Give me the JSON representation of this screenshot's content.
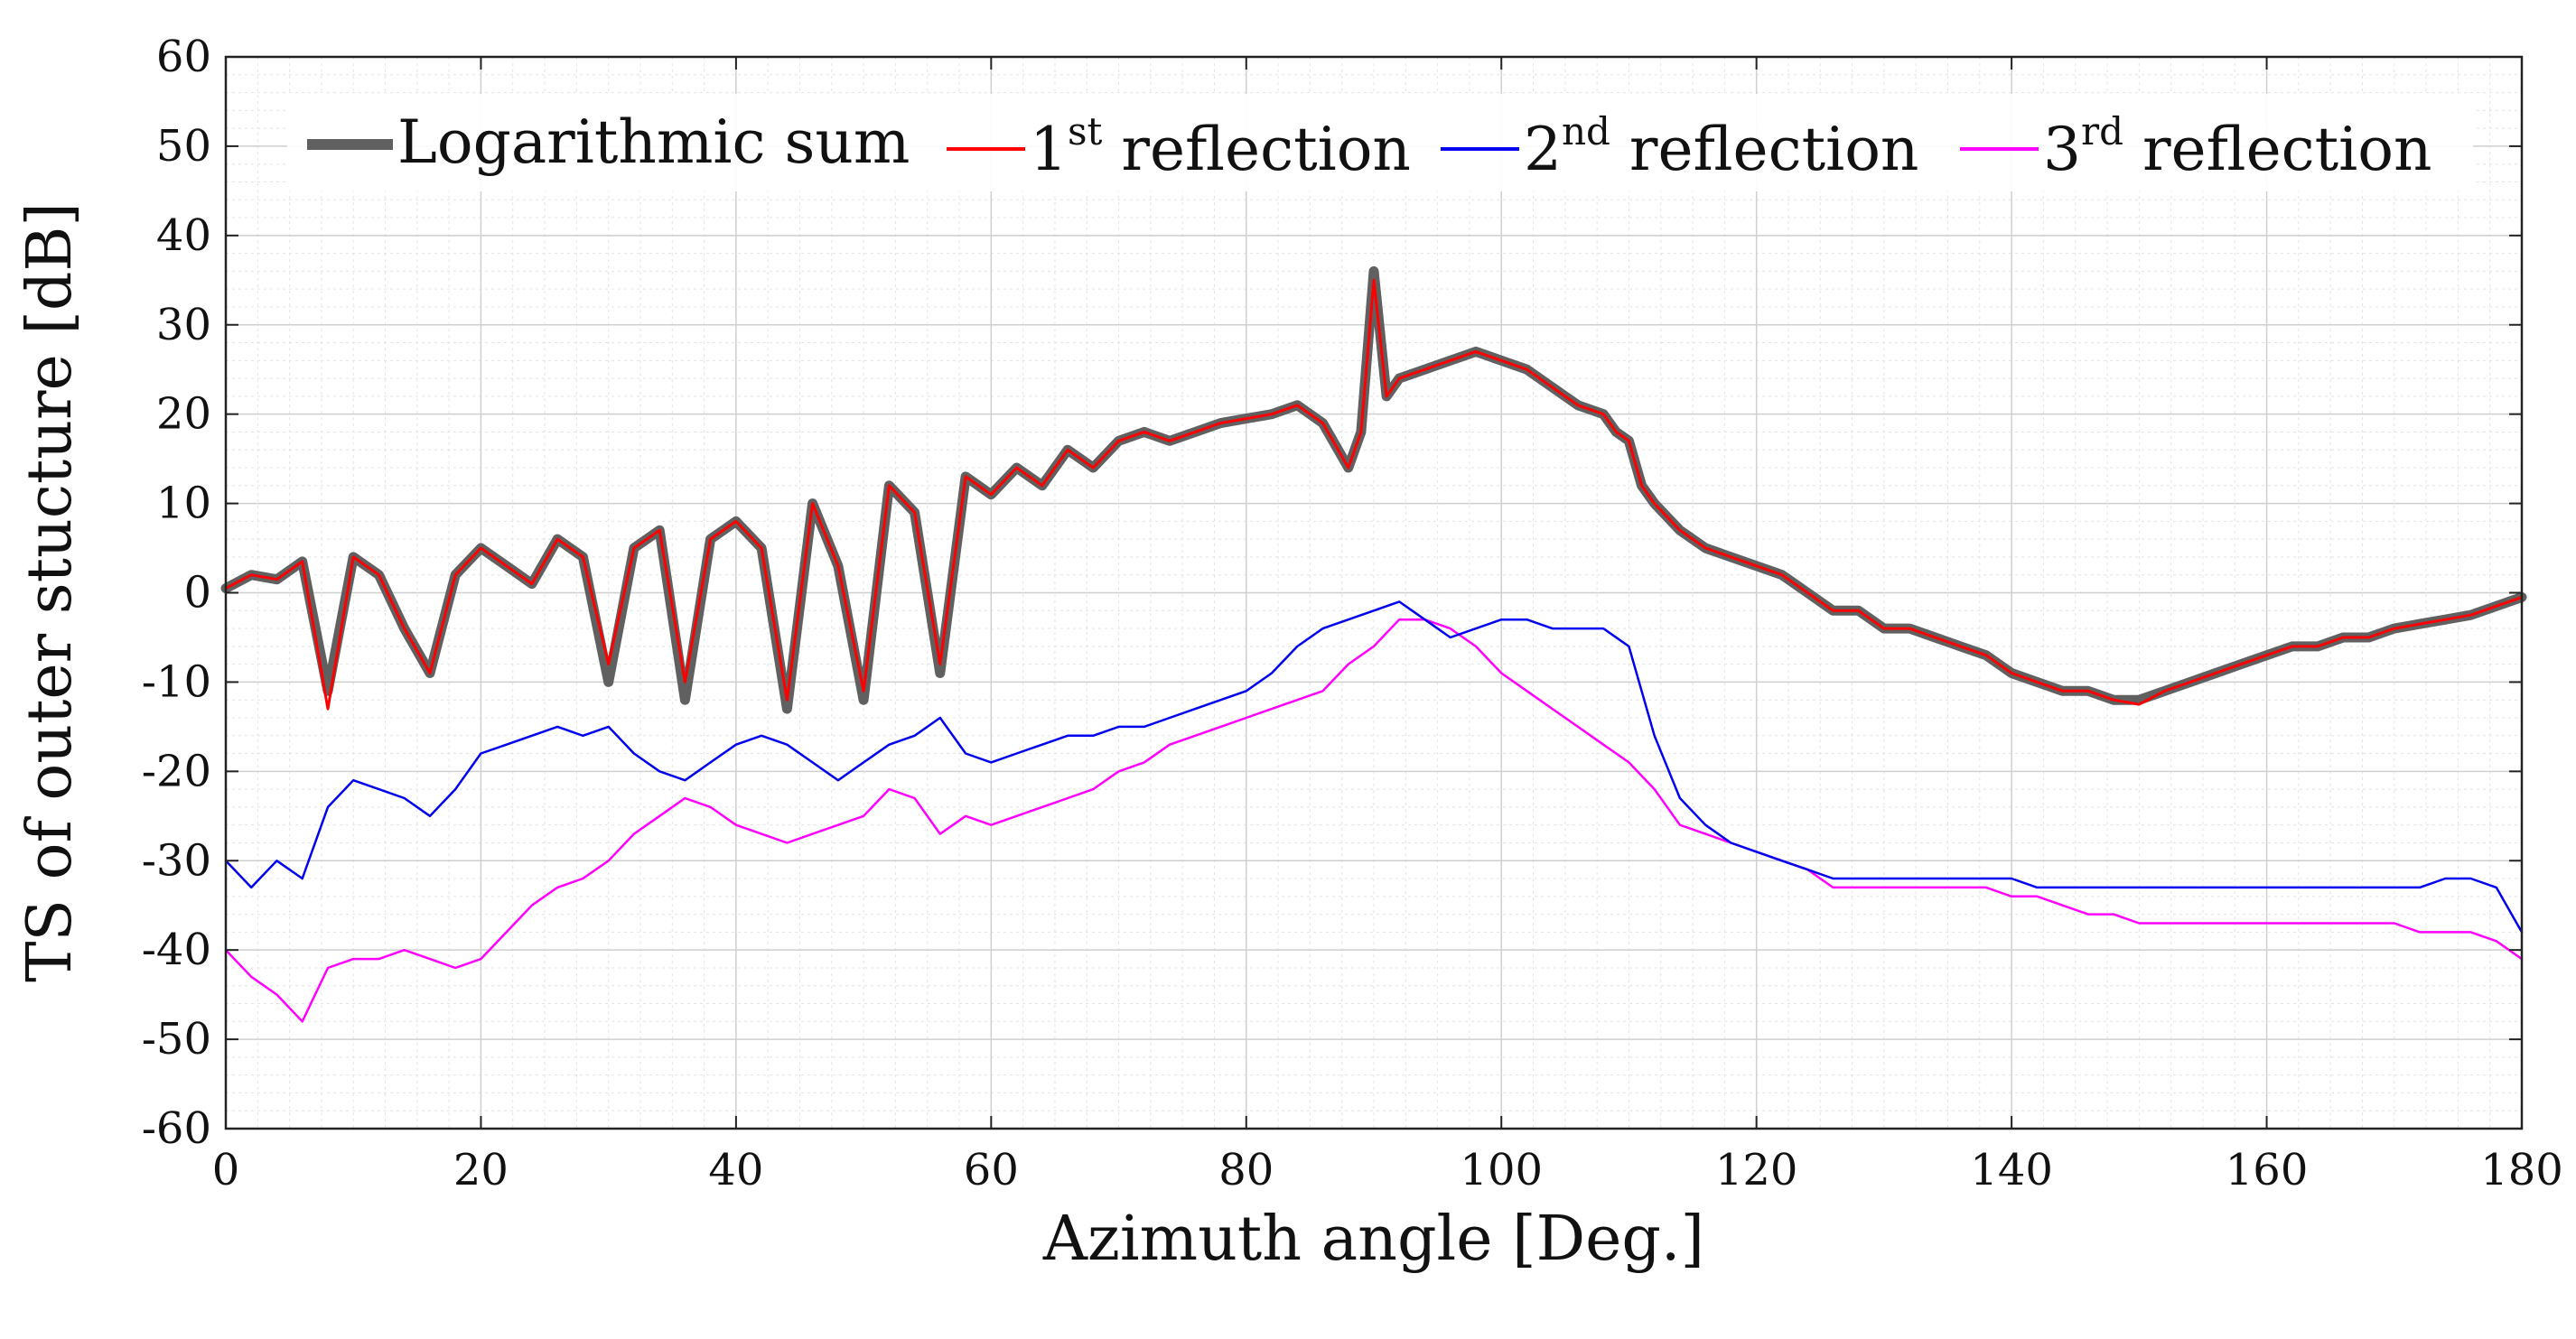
{
  "chart_data": {
    "type": "line",
    "title": "",
    "xlabel": "Azimuth angle [Deg.]",
    "ylabel": "TS of outer stucture [dB]",
    "xlim": [
      0,
      180
    ],
    "ylim": [
      -60,
      60
    ],
    "xticks": [
      0,
      20,
      40,
      60,
      80,
      100,
      120,
      140,
      160,
      180
    ],
    "yticks": [
      -60,
      -50,
      -40,
      -30,
      -20,
      -10,
      0,
      10,
      20,
      30,
      40,
      50,
      60
    ],
    "xtick_labels": [
      "0",
      "20",
      "40",
      "60",
      "80",
      "100",
      "120",
      "140",
      "160",
      "180"
    ],
    "ytick_labels": [
      "-60",
      "-50",
      "-40",
      "-30",
      "-20",
      "-10",
      "0",
      "10",
      "20",
      "30",
      "40",
      "50",
      "60"
    ],
    "grid": true,
    "legend_position": "top",
    "series": [
      {
        "name": "Logarithmic sum",
        "legend_parts": [
          "Logarithmic sum",
          "",
          ""
        ],
        "color": "#606060",
        "x": [
          0,
          2,
          4,
          6,
          8,
          10,
          12,
          14,
          16,
          18,
          20,
          22,
          24,
          26,
          28,
          30,
          32,
          34,
          36,
          38,
          40,
          42,
          44,
          46,
          48,
          50,
          52,
          54,
          56,
          58,
          60,
          62,
          64,
          66,
          68,
          70,
          72,
          74,
          76,
          78,
          80,
          82,
          84,
          86,
          88,
          89,
          90,
          91,
          92,
          94,
          96,
          98,
          100,
          102,
          104,
          106,
          108,
          109,
          110,
          111,
          112,
          114,
          116,
          118,
          120,
          122,
          124,
          126,
          128,
          130,
          132,
          134,
          136,
          138,
          140,
          142,
          144,
          146,
          148,
          150,
          152,
          154,
          156,
          158,
          160,
          162,
          164,
          166,
          168,
          170,
          172,
          174,
          176,
          178,
          180
        ],
        "y": [
          0.5,
          2,
          1.5,
          3.5,
          -11,
          4,
          2,
          -4,
          -9,
          2,
          5,
          3,
          1,
          6,
          4,
          -10,
          5,
          7,
          -12,
          6,
          8,
          5,
          -13,
          10,
          3,
          -12,
          12,
          9,
          -9,
          13,
          11,
          14,
          12,
          16,
          14,
          17,
          18,
          17,
          18,
          19,
          19.5,
          20,
          21,
          19,
          14,
          18,
          36,
          22,
          24,
          25,
          26,
          27,
          26,
          25,
          23,
          21,
          20,
          18,
          17,
          12,
          10,
          7,
          5,
          4,
          3,
          2,
          0,
          -2,
          -2,
          -4,
          -4,
          -5,
          -6,
          -7,
          -9,
          -10,
          -11,
          -11,
          -12,
          -12,
          -11,
          -10,
          -9,
          -8,
          -7,
          -6,
          -6,
          -5,
          -5,
          -4,
          -3.5,
          -3,
          -2.5,
          -1.5,
          -0.5
        ]
      },
      {
        "name": "1st reflection",
        "legend_parts": [
          "1",
          "st",
          " reflection"
        ],
        "color": "#ff0000",
        "x": [
          0,
          2,
          4,
          6,
          8,
          10,
          12,
          14,
          16,
          18,
          20,
          22,
          24,
          26,
          28,
          30,
          32,
          34,
          36,
          38,
          40,
          42,
          44,
          46,
          48,
          50,
          52,
          54,
          56,
          58,
          60,
          62,
          64,
          66,
          68,
          70,
          72,
          74,
          76,
          78,
          80,
          82,
          84,
          86,
          88,
          89,
          90,
          91,
          92,
          94,
          96,
          98,
          100,
          102,
          104,
          106,
          108,
          109,
          110,
          111,
          112,
          114,
          116,
          118,
          120,
          122,
          124,
          126,
          128,
          130,
          132,
          134,
          136,
          138,
          140,
          142,
          144,
          146,
          148,
          150,
          152,
          154,
          156,
          158,
          160,
          162,
          164,
          166,
          168,
          170,
          172,
          174,
          176,
          178,
          180
        ],
        "y": [
          0.5,
          2,
          1.5,
          3.5,
          -13,
          4,
          2,
          -4,
          -9,
          2,
          5,
          3,
          1,
          6,
          4,
          -8,
          5,
          7,
          -10,
          6,
          8,
          5,
          -12,
          10,
          3,
          -11,
          12,
          9,
          -8,
          13,
          11,
          14,
          12,
          16,
          14,
          17,
          18,
          17,
          18,
          19,
          19.5,
          20,
          21,
          19,
          14,
          18,
          35,
          22,
          24,
          25,
          26,
          27,
          26,
          25,
          23,
          21,
          20,
          18,
          17,
          12,
          10,
          7,
          5,
          4,
          3,
          2,
          0,
          -2,
          -2,
          -4,
          -4,
          -5,
          -6,
          -7,
          -9,
          -10,
          -11,
          -11,
          -12,
          -12.5,
          -11,
          -10,
          -9,
          -8,
          -7,
          -6,
          -6,
          -5,
          -5,
          -4,
          -3.5,
          -3,
          -2.5,
          -1.5,
          -0.5
        ]
      },
      {
        "name": "2nd reflection",
        "legend_parts": [
          "2",
          "nd",
          " reflection"
        ],
        "color": "#0000ee",
        "x": [
          0,
          2,
          4,
          6,
          8,
          10,
          12,
          14,
          16,
          18,
          20,
          22,
          24,
          26,
          28,
          30,
          32,
          34,
          36,
          38,
          40,
          42,
          44,
          46,
          48,
          50,
          52,
          54,
          56,
          58,
          60,
          62,
          64,
          66,
          68,
          70,
          72,
          74,
          76,
          78,
          80,
          82,
          84,
          86,
          88,
          90,
          92,
          94,
          96,
          98,
          100,
          102,
          104,
          106,
          108,
          110,
          112,
          114,
          116,
          118,
          120,
          122,
          124,
          126,
          128,
          130,
          132,
          134,
          136,
          138,
          140,
          142,
          144,
          146,
          148,
          150,
          152,
          154,
          156,
          158,
          160,
          162,
          164,
          166,
          168,
          170,
          172,
          174,
          176,
          178,
          180
        ],
        "y": [
          -30,
          -33,
          -30,
          -32,
          -24,
          -21,
          -22,
          -23,
          -25,
          -22,
          -18,
          -17,
          -16,
          -15,
          -16,
          -15,
          -18,
          -20,
          -21,
          -19,
          -17,
          -16,
          -17,
          -19,
          -21,
          -19,
          -17,
          -16,
          -14,
          -18,
          -19,
          -18,
          -17,
          -16,
          -16,
          -15,
          -15,
          -14,
          -13,
          -12,
          -11,
          -9,
          -6,
          -4,
          -3,
          -2,
          -1,
          -3,
          -5,
          -4,
          -3,
          -3,
          -4,
          -4,
          -4,
          -6,
          -16,
          -23,
          -26,
          -28,
          -29,
          -30,
          -31,
          -32,
          -32,
          -32,
          -32,
          -32,
          -32,
          -32,
          -32,
          -33,
          -33,
          -33,
          -33,
          -33,
          -33,
          -33,
          -33,
          -33,
          -33,
          -33,
          -33,
          -33,
          -33,
          -33,
          -33,
          -32,
          -32,
          -33,
          -38
        ]
      },
      {
        "name": "3rd reflection",
        "legend_parts": [
          "3",
          "rd",
          " reflection"
        ],
        "color": "#ff00ff",
        "x": [
          0,
          2,
          4,
          6,
          8,
          10,
          12,
          14,
          16,
          18,
          20,
          22,
          24,
          26,
          28,
          30,
          32,
          34,
          36,
          38,
          40,
          42,
          44,
          46,
          48,
          50,
          52,
          54,
          56,
          58,
          60,
          62,
          64,
          66,
          68,
          70,
          72,
          74,
          76,
          78,
          80,
          82,
          84,
          86,
          88,
          90,
          92,
          94,
          96,
          98,
          100,
          102,
          104,
          106,
          108,
          110,
          112,
          114,
          116,
          118,
          120,
          122,
          124,
          126,
          128,
          130,
          132,
          134,
          136,
          138,
          140,
          142,
          144,
          146,
          148,
          150,
          152,
          154,
          156,
          158,
          160,
          162,
          164,
          166,
          168,
          170,
          172,
          174,
          176,
          178,
          180
        ],
        "y": [
          -40,
          -43,
          -45,
          -48,
          -42,
          -41,
          -41,
          -40,
          -41,
          -42,
          -41,
          -38,
          -35,
          -33,
          -32,
          -30,
          -27,
          -25,
          -23,
          -24,
          -26,
          -27,
          -28,
          -27,
          -26,
          -25,
          -22,
          -23,
          -27,
          -25,
          -26,
          -25,
          -24,
          -23,
          -22,
          -20,
          -19,
          -17,
          -16,
          -15,
          -14,
          -13,
          -12,
          -11,
          -8,
          -6,
          -3,
          -3,
          -4,
          -6,
          -9,
          -11,
          -13,
          -15,
          -17,
          -19,
          -22,
          -26,
          -27,
          -28,
          -29,
          -30,
          -31,
          -33,
          -33,
          -33,
          -33,
          -33,
          -33,
          -33,
          -34,
          -34,
          -35,
          -36,
          -36,
          -37,
          -37,
          -37,
          -37,
          -37,
          -37,
          -37,
          -37,
          -37,
          -37,
          -37,
          -38,
          -38,
          -38,
          -39,
          -41
        ]
      }
    ]
  }
}
